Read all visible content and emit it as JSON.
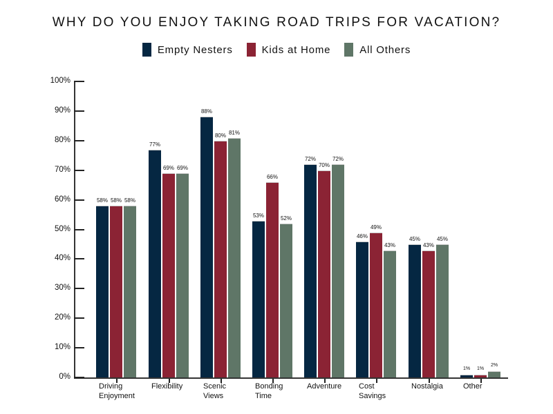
{
  "chart_data": {
    "type": "bar",
    "title": "WHY DO YOU ENJOY TAKING ROAD TRIPS FOR VACATION?",
    "xlabel": "",
    "ylabel": "",
    "ylim": [
      0,
      100
    ],
    "yticks": [
      "0%",
      "10%",
      "20%",
      "30%",
      "40%",
      "50%",
      "60%",
      "70%",
      "80%",
      "90%",
      "100%"
    ],
    "legend_position": "top",
    "grid": false,
    "categories": [
      "Driving Enjoyment",
      "Flexibility",
      "Scenic Views",
      "Bonding Time",
      "Adventure",
      "Cost Savings",
      "Nostalgia",
      "Other"
    ],
    "category_lines": [
      [
        "Driving",
        "Enjoyment"
      ],
      [
        "Flexibility"
      ],
      [
        "Scenic",
        "Views"
      ],
      [
        "Bonding",
        "Time"
      ],
      [
        "Adventure"
      ],
      [
        "Cost",
        "Savings"
      ],
      [
        "Nostalgia"
      ],
      [
        "Other"
      ]
    ],
    "series": [
      {
        "name": "Empty Nesters",
        "color": "#052742",
        "values": [
          58,
          77,
          88,
          53,
          72,
          46,
          45,
          1
        ]
      },
      {
        "name": "Kids at Home",
        "color": "#8b2334",
        "values": [
          58,
          69,
          80,
          66,
          70,
          49,
          43,
          1
        ]
      },
      {
        "name": "All Others",
        "color": "#5f7667",
        "values": [
          58,
          69,
          81,
          52,
          72,
          43,
          45,
          2
        ]
      }
    ]
  }
}
